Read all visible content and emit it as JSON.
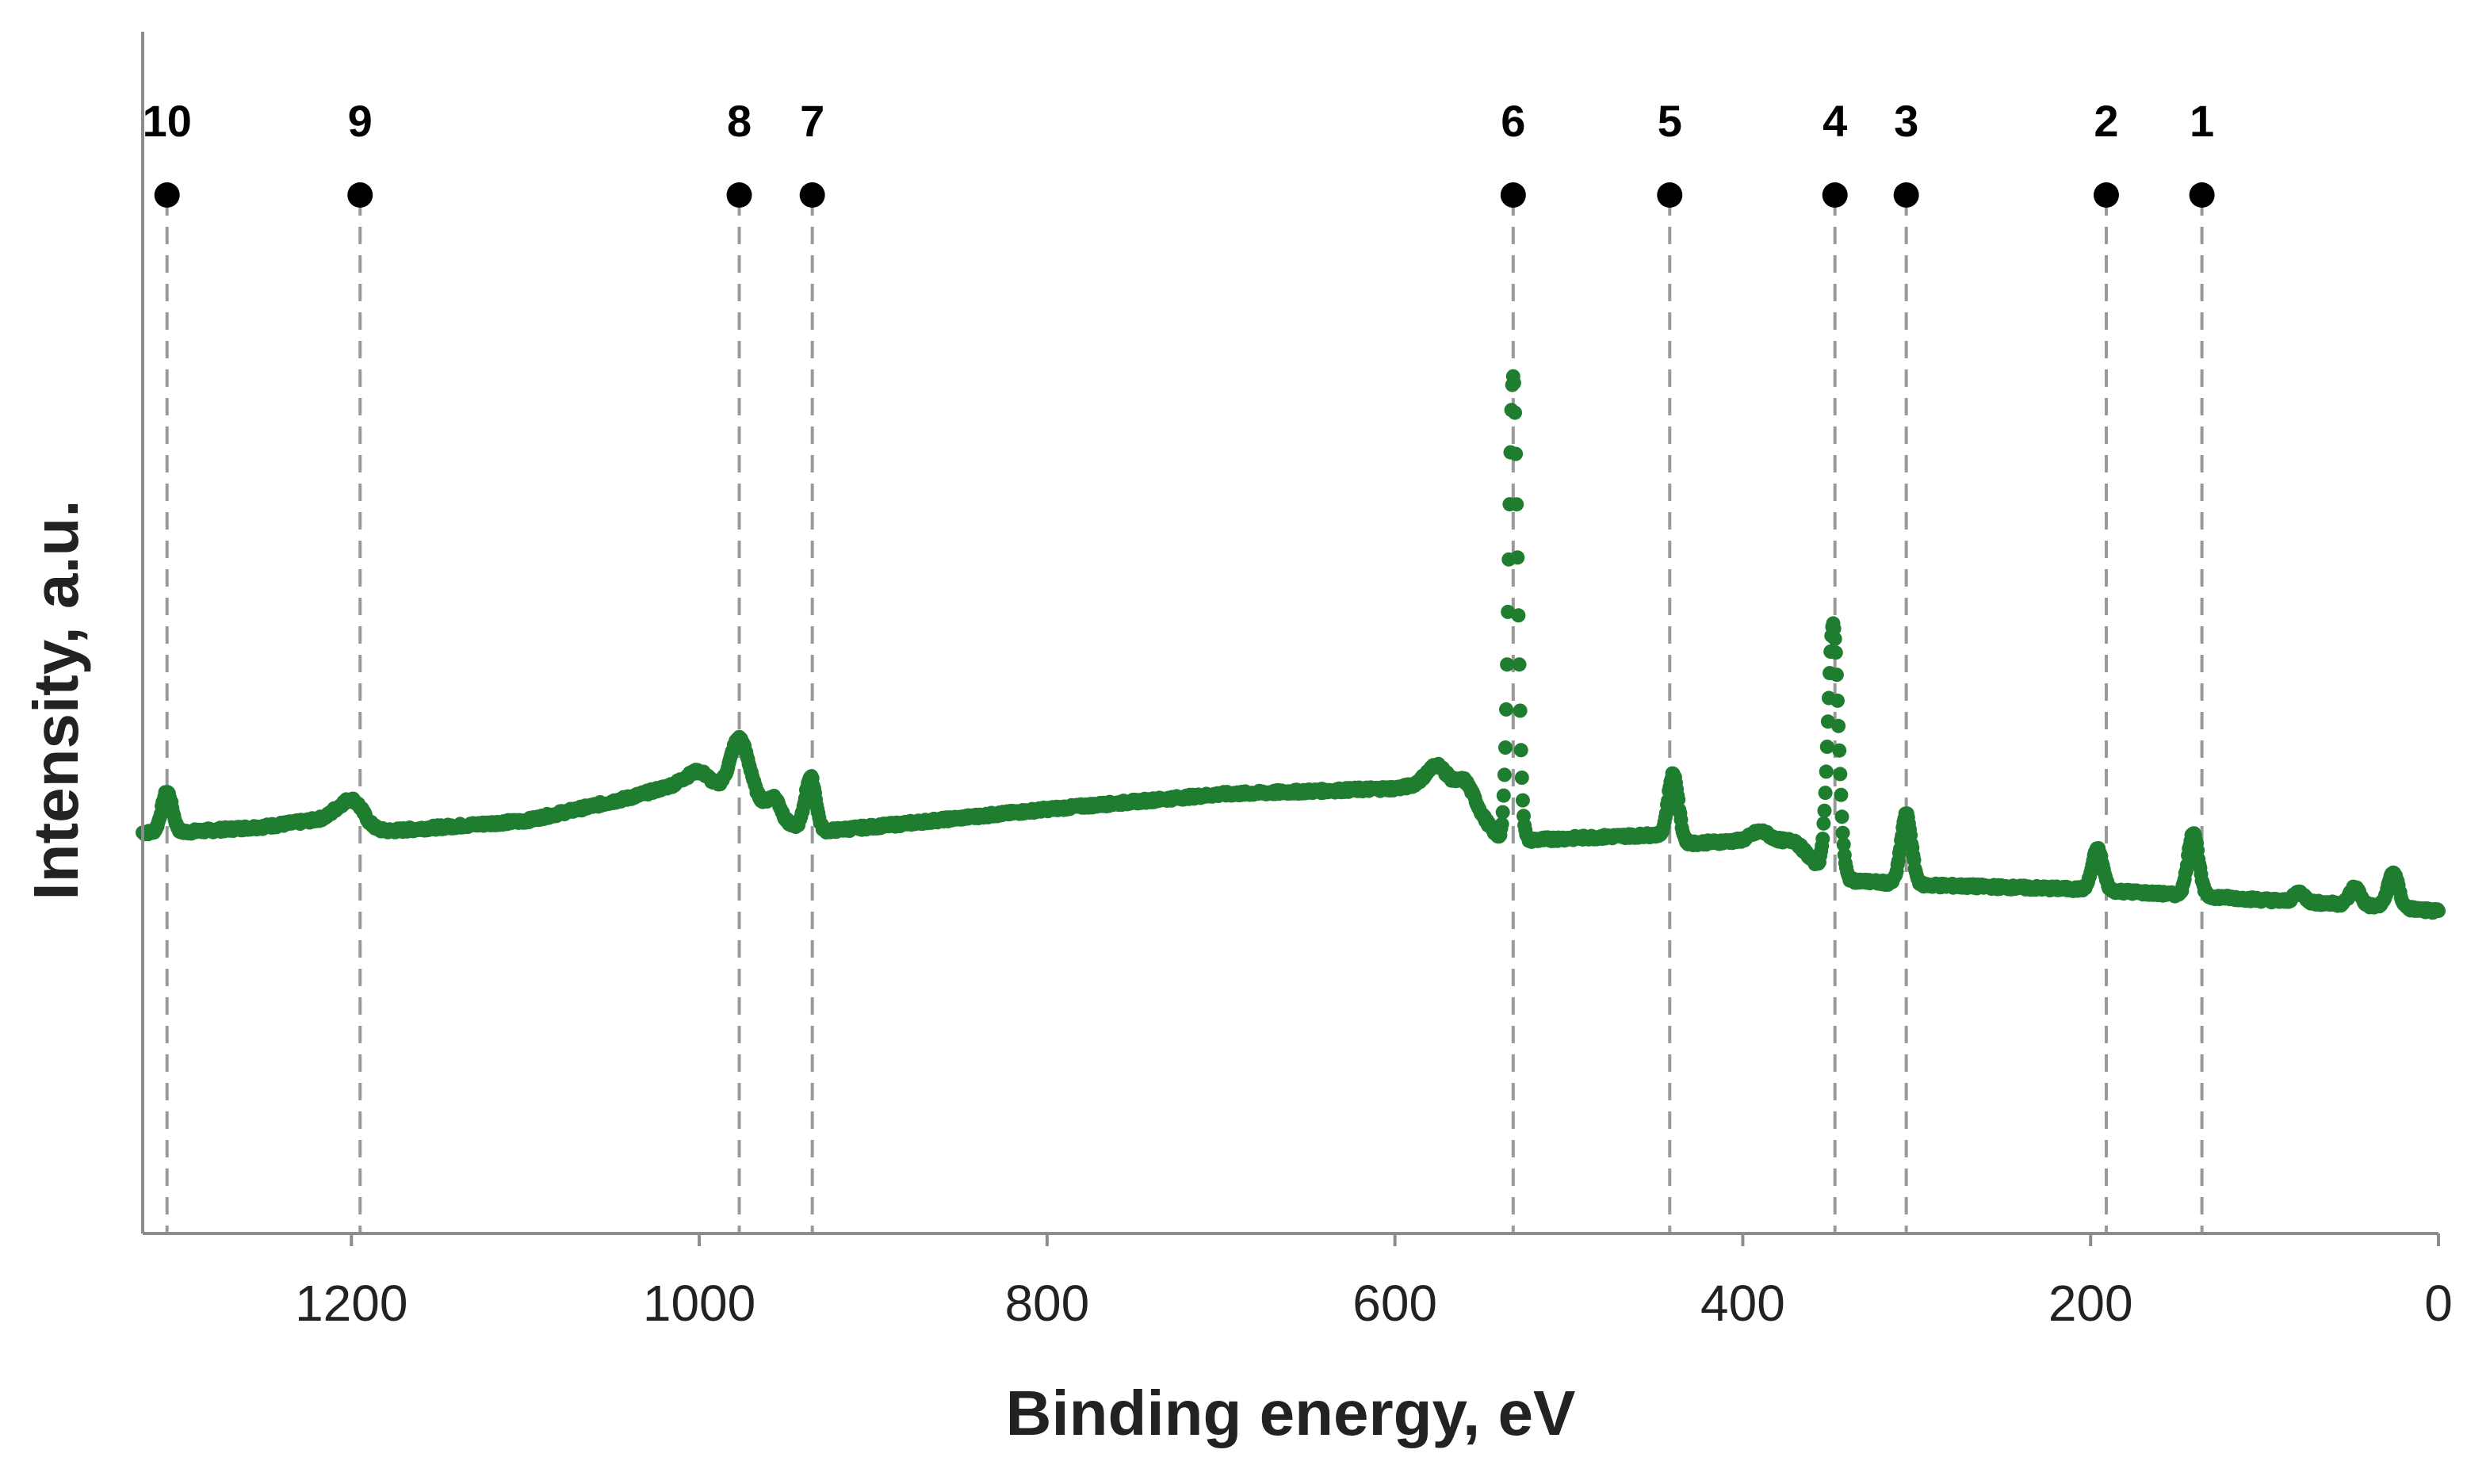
{
  "chart_data": {
    "type": "scatter",
    "title": "",
    "xlabel": "Binding energy, eV",
    "ylabel": "Intensity, a.u.",
    "x_reversed": true,
    "xlim": [
      1320,
      0
    ],
    "ylim": [
      0,
      100
    ],
    "y_ticks_shown": false,
    "grid": false,
    "x_ticks": [
      1200,
      1000,
      800,
      600,
      400,
      200,
      0
    ],
    "x_tick_labels": [
      "1200",
      "1000",
      "800",
      "600",
      "400",
      "200",
      "0"
    ],
    "series_color": "#1e7d2e",
    "marker_line_color": "#999999",
    "baseline": [
      [
        1320,
        34.5
      ],
      [
        1300,
        34.5
      ],
      [
        1250,
        35.0
      ],
      [
        1210,
        35.8
      ],
      [
        1190,
        34.5
      ],
      [
        1100,
        35.5
      ],
      [
        1040,
        37.5
      ],
      [
        1010,
        38.8
      ],
      [
        990,
        38.3
      ],
      [
        970,
        38.0
      ],
      [
        960,
        36.0
      ],
      [
        950,
        35.2
      ],
      [
        930,
        34.6
      ],
      [
        900,
        35.0
      ],
      [
        800,
        36.5
      ],
      [
        700,
        37.8
      ],
      [
        600,
        38.3
      ],
      [
        575,
        38.8
      ],
      [
        560,
        37.8
      ],
      [
        540,
        34.0
      ],
      [
        530,
        33.8
      ],
      [
        500,
        34.0
      ],
      [
        450,
        34.3
      ],
      [
        440,
        33.5
      ],
      [
        400,
        33.8
      ],
      [
        370,
        33.8
      ],
      [
        350,
        30.5
      ],
      [
        320,
        30.2
      ],
      [
        300,
        30.0
      ],
      [
        200,
        29.6
      ],
      [
        100,
        28.7
      ],
      [
        50,
        28.3
      ],
      [
        20,
        28.0
      ],
      [
        0,
        27.7
      ]
    ],
    "peaks": [
      {
        "x": 1306,
        "height": 3.5,
        "width": 3
      },
      {
        "x": 1199,
        "height": 2.2,
        "width": 7
      },
      {
        "x": 1000,
        "height": 1.2,
        "width": 6
      },
      {
        "x": 977,
        "height": 4.5,
        "width": 5
      },
      {
        "x": 957,
        "height": 1.8,
        "width": 4
      },
      {
        "x": 936,
        "height": 4.5,
        "width": 3
      },
      {
        "x": 576,
        "height": 1.5,
        "width": 6
      },
      {
        "x": 559,
        "height": 1.2,
        "width": 5
      },
      {
        "x": 532,
        "height": 40.0,
        "width": 2.5
      },
      {
        "x": 440,
        "height": 6.0,
        "width": 3
      },
      {
        "x": 390,
        "height": 0.8,
        "width": 5
      },
      {
        "x": 348,
        "height": 22.0,
        "width": 3
      },
      {
        "x": 306,
        "height": 6.0,
        "width": 3
      },
      {
        "x": 196,
        "height": 3.5,
        "width": 3
      },
      {
        "x": 141,
        "height": 5.5,
        "width": 3
      },
      {
        "x": 80,
        "height": 0.8,
        "width": 3
      },
      {
        "x": 48,
        "height": 1.5,
        "width": 3
      },
      {
        "x": 26,
        "height": 3.0,
        "width": 3
      }
    ],
    "markers": [
      {
        "label": "10",
        "x": 1306
      },
      {
        "label": "9",
        "x": 1195
      },
      {
        "label": "8",
        "x": 977
      },
      {
        "label": "7",
        "x": 935
      },
      {
        "label": "6",
        "x": 532
      },
      {
        "label": "5",
        "x": 442
      },
      {
        "label": "4",
        "x": 347
      },
      {
        "label": "3",
        "x": 306
      },
      {
        "label": "2",
        "x": 191
      },
      {
        "label": "1",
        "x": 136
      }
    ]
  }
}
